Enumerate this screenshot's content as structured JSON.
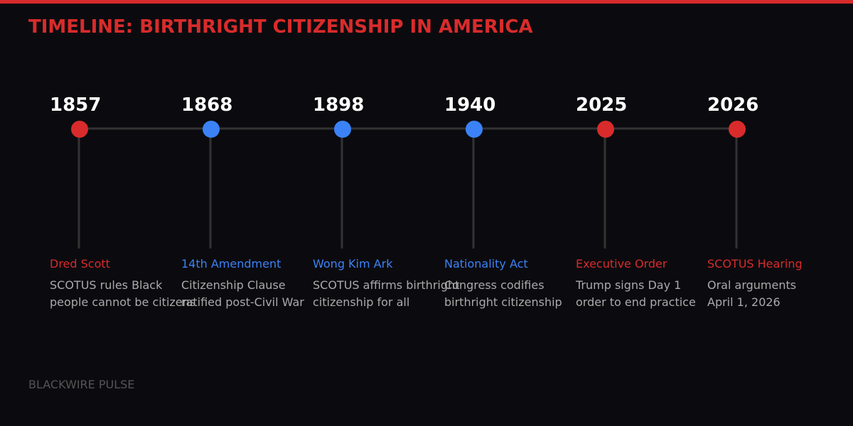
{
  "header": {
    "title": "TIMELINE: BIRTHRIGHT CITIZENSHIP IN AMERICA"
  },
  "events": [
    {
      "year": "1857",
      "label": "Dred Scott",
      "color": "#d92b2b",
      "description": [
        "SCOTUS rules Black",
        "people cannot be citizens"
      ]
    },
    {
      "year": "1868",
      "label": "14th Amendment",
      "color": "#3b82f6",
      "description": [
        "Citizenship Clause",
        "ratified post-Civil War"
      ]
    },
    {
      "year": "1898",
      "label": "Wong Kim Ark",
      "color": "#3b82f6",
      "description": [
        "SCOTUS affirms birthright",
        "citizenship for all"
      ]
    },
    {
      "year": "1940",
      "label": "Nationality Act",
      "color": "#3b82f6",
      "description": [
        "Congress codifies",
        "birthright citizenship"
      ]
    },
    {
      "year": "2025",
      "label": "Executive Order",
      "color": "#d92b2b",
      "description": [
        "Trump signs Day 1",
        "order to end practice"
      ]
    },
    {
      "year": "2026",
      "label": "SCOTUS Hearing",
      "color": "#d92b2b",
      "description": [
        "Oral arguments",
        "April 1, 2026"
      ]
    }
  ],
  "footer": {
    "brand": "BLACKWIRE PULSE"
  }
}
